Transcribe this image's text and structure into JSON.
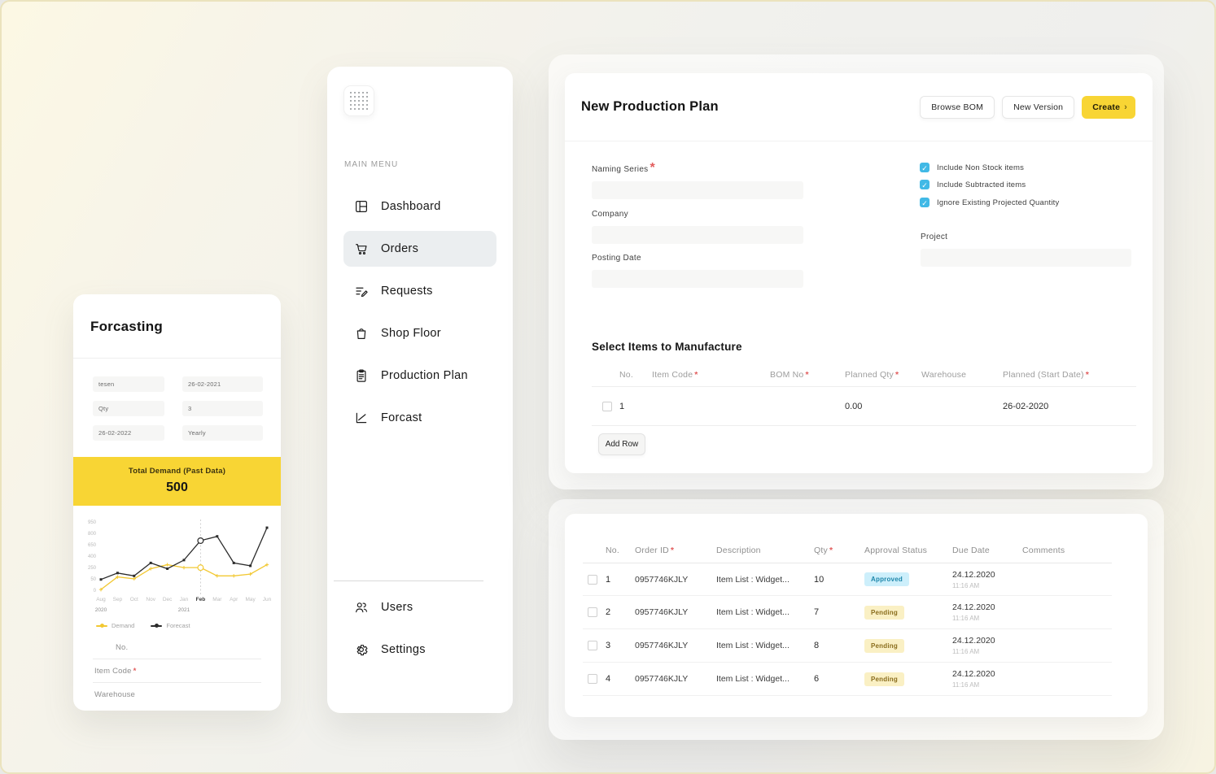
{
  "colors": {
    "accent_yellow": "#F8D534",
    "checkbox_blue": "#41B9E6",
    "approved_bg": "#CDEFFB",
    "approved_text": "#1E87AB",
    "pending_bg": "#FAF0C4",
    "pending_text": "#8A6D1D",
    "demand_line": "#F2C832",
    "forecast_line": "#2B2B2B"
  },
  "forecast_card": {
    "title": "Forcasting",
    "inputs": [
      {
        "value": "tesen"
      },
      {
        "value": "26-02-2021"
      },
      {
        "value": "Qty"
      },
      {
        "value": "3"
      },
      {
        "value": "26-02-2022"
      },
      {
        "value": "Yearly"
      }
    ],
    "banner": {
      "label": "Total Demand (Past Data)",
      "value": "500"
    },
    "footer_fields": [
      {
        "label": "No.",
        "required": false
      },
      {
        "label": "Item Code",
        "required": true
      },
      {
        "label": "Warehouse",
        "required": false
      }
    ]
  },
  "chart_data": {
    "type": "line",
    "x": [
      "Aug",
      "Sep",
      "Oct",
      "Nov",
      "Dec",
      "Jan",
      "Feb",
      "Mar",
      "Apr",
      "May",
      "Jun"
    ],
    "x_years": [
      {
        "index": 0,
        "label": "2020"
      },
      {
        "index": 5,
        "label": "2021"
      }
    ],
    "highlight_x": "Feb",
    "forecast_start_index": 6,
    "y_ticks": [
      0,
      50,
      250,
      400,
      650,
      800,
      950
    ],
    "ylim": [
      0,
      950
    ],
    "grid": false,
    "legend_position": "bottom-left",
    "series": [
      {
        "name": "Demand",
        "color": "#F2C832",
        "values": [
          10,
          185,
          160,
          300,
          355,
          315,
          315,
          200,
          200,
          225,
          355
        ]
      },
      {
        "name": "Forecast",
        "color": "#2B2B2B",
        "values": [
          150,
          240,
          200,
          380,
          300,
          420,
          690,
          750,
          380,
          340,
          870
        ]
      }
    ]
  },
  "sidebar": {
    "section_label": "MAIN MENU",
    "items": [
      {
        "label": "Dashboard",
        "icon": "dashboard-icon",
        "active": false
      },
      {
        "label": "Orders",
        "icon": "cart-icon",
        "active": true
      },
      {
        "label": "Requests",
        "icon": "request-edit-icon",
        "active": false
      },
      {
        "label": "Shop Floor",
        "icon": "shop-bag-icon",
        "active": false
      },
      {
        "label": "Production Plan",
        "icon": "clipboard-icon",
        "active": false
      },
      {
        "label": "Forcast",
        "icon": "chart-line-icon",
        "active": false
      }
    ],
    "footer_items": [
      {
        "label": "Users",
        "icon": "users-icon"
      },
      {
        "label": "Settings",
        "icon": "gear-icon"
      }
    ]
  },
  "production_plan": {
    "title": "New Production Plan",
    "actions": {
      "browse_label": "Browse BOM",
      "new_version_label": "New Version",
      "create_label": "Create",
      "create_chevron": "›"
    },
    "fields": [
      {
        "label": "Naming Series",
        "required": true,
        "value": ""
      },
      {
        "label": "Company",
        "required": false,
        "value": ""
      },
      {
        "label": "Posting Date",
        "required": false,
        "value": ""
      }
    ],
    "checkboxes": [
      {
        "label": "Include Non Stock items",
        "checked": true
      },
      {
        "label": "Include Subtracted items",
        "checked": true
      },
      {
        "label": "Ignore Existing Projected Quantity",
        "checked": true
      }
    ],
    "project_field": {
      "label": "Project",
      "value": ""
    },
    "items_section": {
      "title": "Select Items to Manufacture",
      "add_row_label": "Add Row",
      "columns": [
        {
          "label": "No.",
          "required": false
        },
        {
          "label": "Item Code",
          "required": true
        },
        {
          "label": "BOM No",
          "required": true
        },
        {
          "label": "Planned Qty",
          "required": true
        },
        {
          "label": "Warehouse",
          "required": false
        },
        {
          "label": "Planned (Start Date)",
          "required": true
        }
      ],
      "rows": [
        {
          "no": "1",
          "item_code": "",
          "bom_no": "",
          "planned_qty": "0.00",
          "warehouse": "",
          "planned_start_date": "26-02-2020"
        }
      ]
    }
  },
  "orders_panel": {
    "columns": [
      {
        "label": "No.",
        "required": false
      },
      {
        "label": "Order ID",
        "required": true
      },
      {
        "label": "Description",
        "required": false
      },
      {
        "label": "Qty",
        "required": true
      },
      {
        "label": "Approval Status",
        "required": false
      },
      {
        "label": "Due Date",
        "required": false
      },
      {
        "label": "Comments",
        "required": false
      }
    ],
    "rows": [
      {
        "no": "1",
        "order_id": "0957746KJLY",
        "description": "Item List : Widget...",
        "qty": "10",
        "status": "Approved",
        "due_date": "24.12.2020",
        "due_time": "11:16 AM",
        "comments": ""
      },
      {
        "no": "2",
        "order_id": "0957746KJLY",
        "description": "Item List : Widget...",
        "qty": "7",
        "status": "Pending",
        "due_date": "24.12.2020",
        "due_time": "11:16 AM",
        "comments": ""
      },
      {
        "no": "3",
        "order_id": "0957746KJLY",
        "description": "Item List : Widget...",
        "qty": "8",
        "status": "Pending",
        "due_date": "24.12.2020",
        "due_time": "11:16 AM",
        "comments": ""
      },
      {
        "no": "4",
        "order_id": "0957746KJLY",
        "description": "Item List : Widget...",
        "qty": "6",
        "status": "Pending",
        "due_date": "24.12.2020",
        "due_time": "11:16 AM",
        "comments": ""
      }
    ]
  }
}
